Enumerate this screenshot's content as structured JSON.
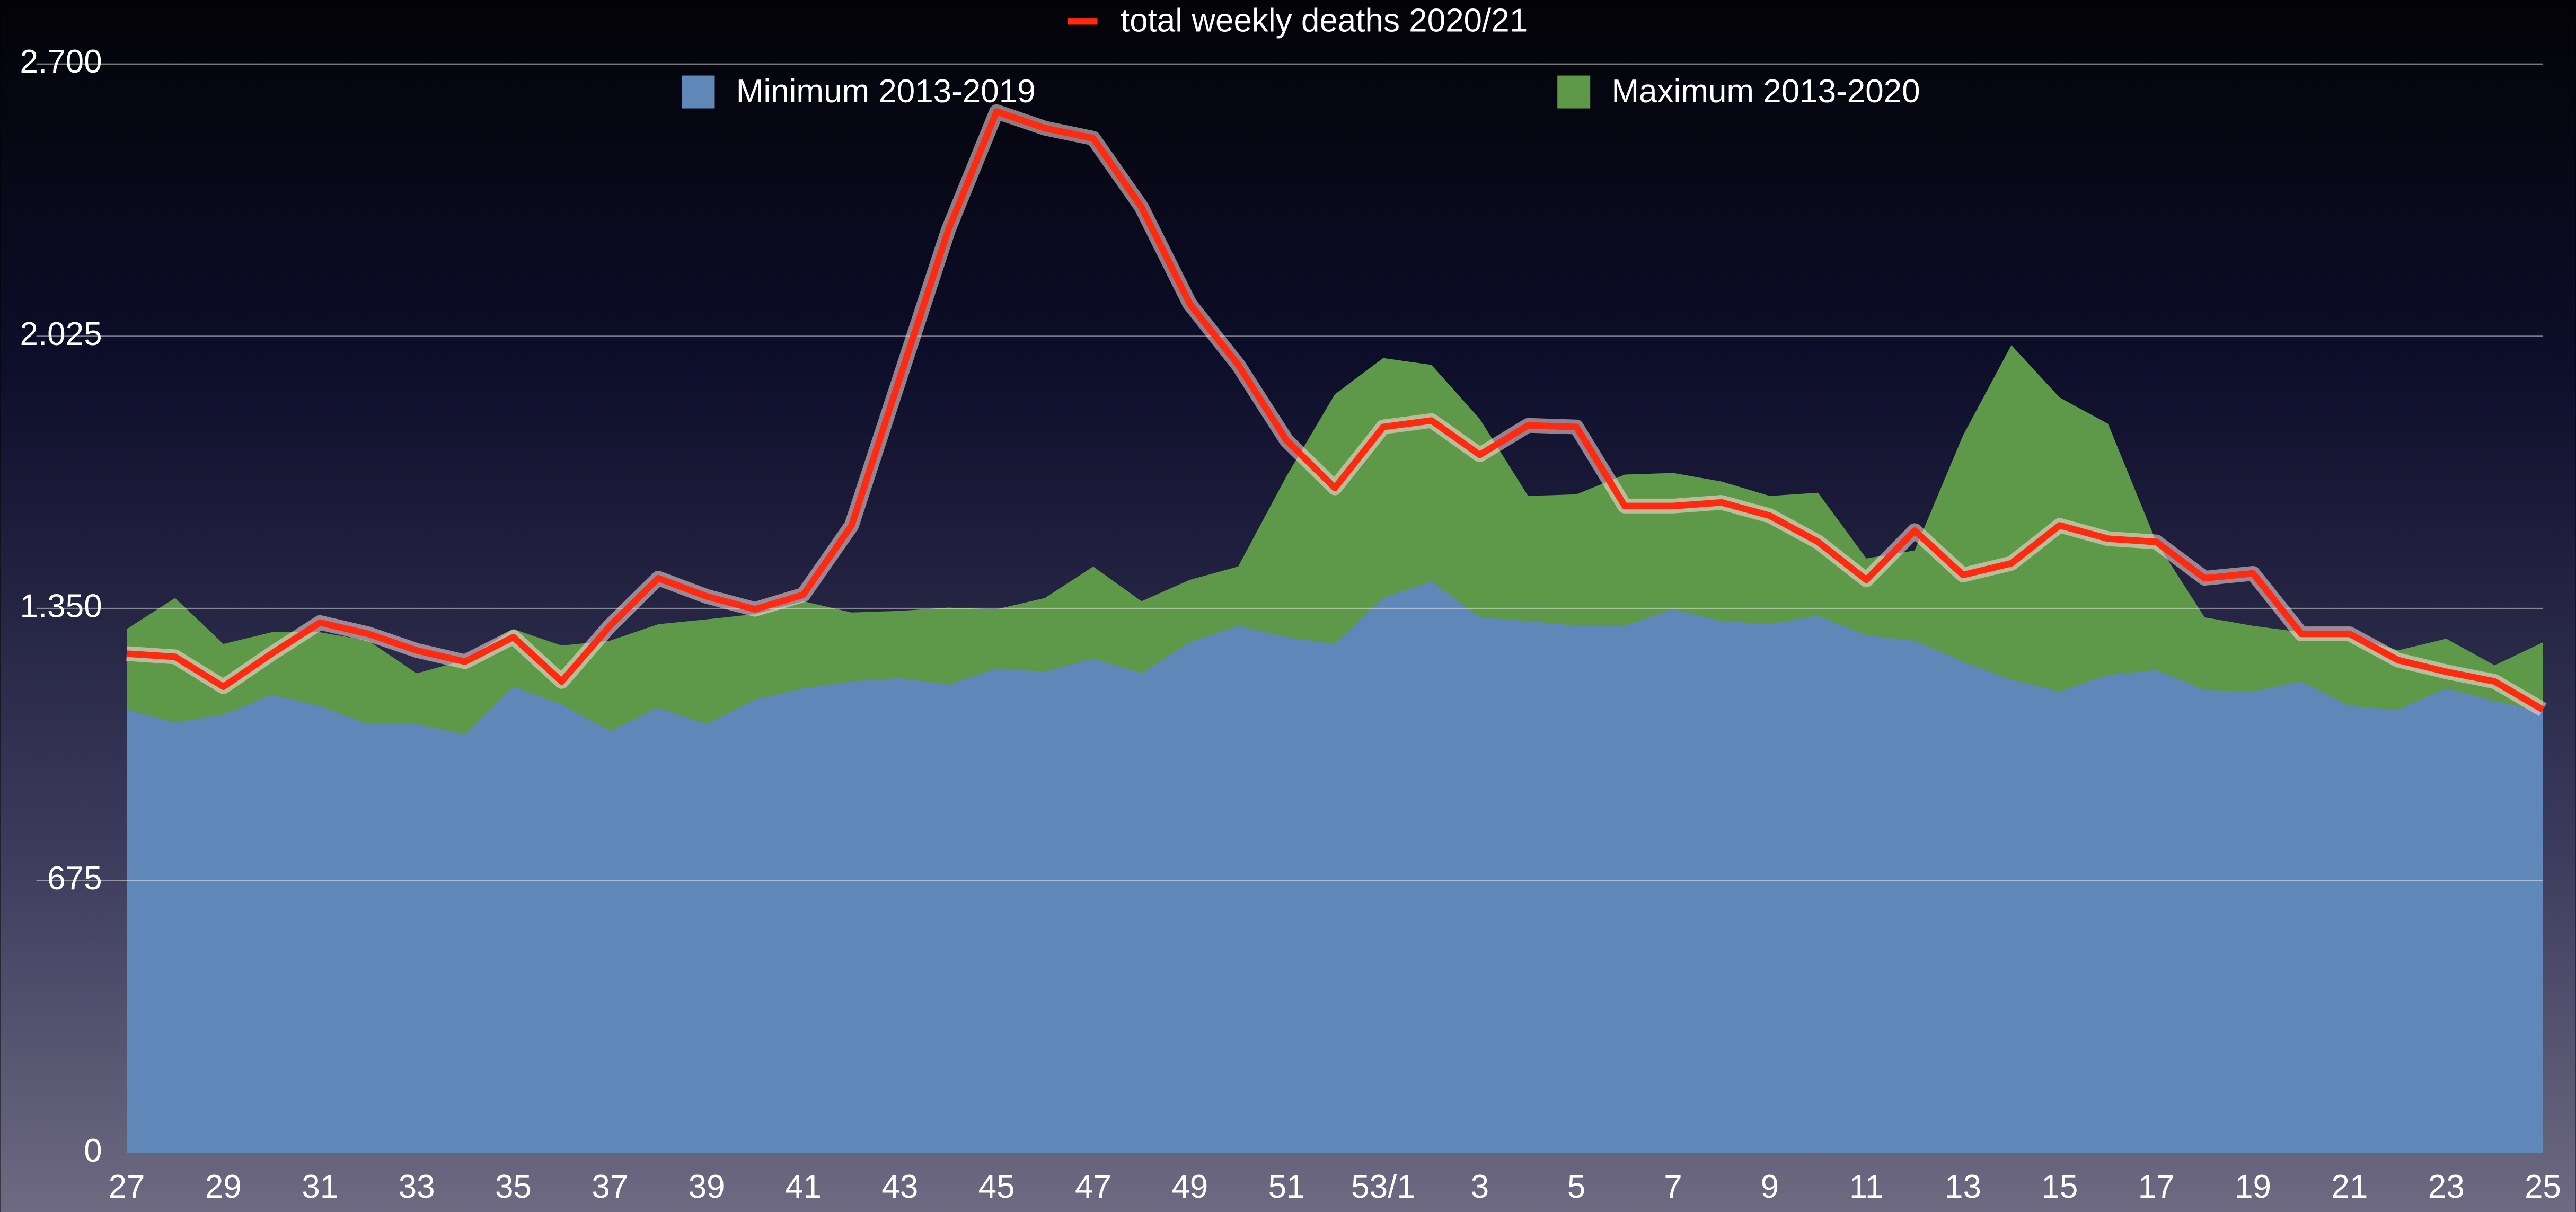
{
  "chart_data": {
    "type": "area",
    "categories": [
      "27",
      null,
      "29",
      null,
      "31",
      null,
      "33",
      null,
      "35",
      null,
      "37",
      null,
      "39",
      null,
      "41",
      null,
      "43",
      null,
      "45",
      null,
      "47",
      null,
      "49",
      null,
      "51",
      null,
      "53/1",
      null,
      "3",
      null,
      "5",
      null,
      "7",
      null,
      "9",
      null,
      "11",
      null,
      "13",
      null,
      "15",
      null,
      "17",
      null,
      "19",
      null,
      "21",
      null,
      "23",
      null,
      "25"
    ],
    "series": [
      {
        "name": "total weekly deaths 2020/21",
        "type": "line",
        "color": "#ff2a10",
        "values": [
          1238,
          1230,
          1156,
          1238,
          1315,
          1287,
          1246,
          1218,
          1279,
          1169,
          1307,
          1425,
          1380,
          1348,
          1384,
          1556,
          1922,
          2288,
          2582,
          2541,
          2516,
          2345,
          2105,
          1954,
          1767,
          1649,
          1800,
          1816,
          1731,
          1804,
          1800,
          1604,
          1604,
          1613,
          1580,
          1515,
          1421,
          1543,
          1433,
          1462,
          1556,
          1523,
          1515,
          1425,
          1437,
          1287,
          1287,
          1222,
          1193,
          1169,
          1099
        ]
      },
      {
        "name": "Minimum 2013-2019",
        "type": "area",
        "color": "#5f87b8",
        "values": [
          1099,
          1067,
          1087,
          1136,
          1108,
          1063,
          1063,
          1038,
          1156,
          1112,
          1046,
          1104,
          1063,
          1124,
          1152,
          1169,
          1177,
          1161,
          1201,
          1193,
          1226,
          1189,
          1266,
          1307,
          1279,
          1262,
          1376,
          1417,
          1328,
          1319,
          1307,
          1307,
          1348,
          1319,
          1311,
          1332,
          1283,
          1270,
          1218,
          1173,
          1144,
          1185,
          1197,
          1148,
          1144,
          1169,
          1108,
          1099,
          1152,
          1120,
          1095
        ]
      },
      {
        "name": "Maximum 2013-2020",
        "type": "area",
        "color": "#5e994a",
        "values": [
          1299,
          1376,
          1262,
          1291,
          1291,
          1270,
          1189,
          1222,
          1299,
          1258,
          1270,
          1311,
          1323,
          1336,
          1368,
          1340,
          1344,
          1352,
          1348,
          1376,
          1454,
          1368,
          1421,
          1454,
          1678,
          1881,
          1971,
          1954,
          1820,
          1629,
          1633,
          1682,
          1686,
          1665,
          1629,
          1637,
          1474,
          1494,
          1779,
          2003,
          1873,
          1808,
          1515,
          1328,
          1307,
          1291,
          1283,
          1246,
          1275,
          1209,
          1266
        ]
      }
    ],
    "ylim": [
      0,
      2700
    ],
    "yticks": [
      0,
      675,
      {
        "value": 1350,
        "label": "1.350"
      },
      {
        "value": 2025,
        "label": "2.025"
      },
      {
        "value": 2700,
        "label": "2.700"
      }
    ],
    "grid": true,
    "legend": "top"
  }
}
